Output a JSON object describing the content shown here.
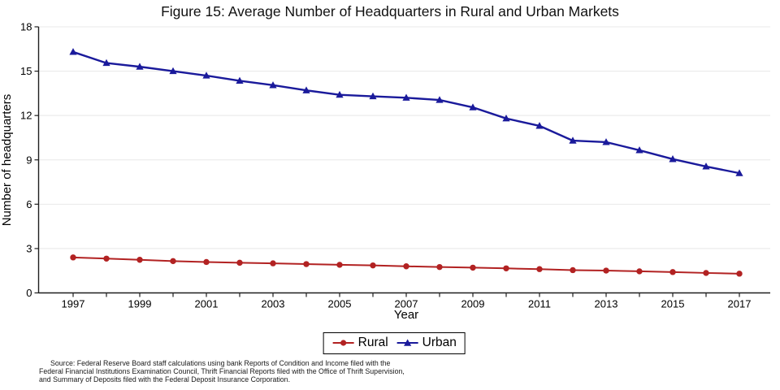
{
  "title": "Figure 15: Average Number of Headquarters in Rural and Urban Markets",
  "chart_data": {
    "type": "line",
    "x": [
      1997,
      1998,
      1999,
      2000,
      2001,
      2002,
      2003,
      2004,
      2005,
      2006,
      2007,
      2008,
      2009,
      2010,
      2011,
      2012,
      2013,
      2014,
      2015,
      2016,
      2017
    ],
    "series": [
      {
        "name": "Rural",
        "marker": "circle",
        "color": "#b22222",
        "values": [
          2.4,
          2.32,
          2.24,
          2.15,
          2.09,
          2.04,
          2.0,
          1.95,
          1.9,
          1.86,
          1.8,
          1.75,
          1.71,
          1.66,
          1.61,
          1.54,
          1.51,
          1.46,
          1.41,
          1.35,
          1.3
        ]
      },
      {
        "name": "Urban",
        "marker": "triangle",
        "color": "#1a1a9b",
        "values": [
          16.3,
          15.55,
          15.3,
          15.0,
          14.7,
          14.35,
          14.05,
          13.7,
          13.4,
          13.3,
          13.2,
          13.05,
          12.55,
          11.8,
          11.3,
          10.3,
          10.2,
          9.65,
          9.05,
          8.55,
          8.1
        ]
      }
    ],
    "xlabel": "Year",
    "ylabel": "Number of headquarters",
    "ylim": [
      0,
      18
    ],
    "yticks": [
      0,
      3,
      6,
      9,
      12,
      15,
      18
    ],
    "xtick_labels": [
      1997,
      1999,
      2001,
      2003,
      2005,
      2007,
      2009,
      2011,
      2013,
      2015,
      2017
    ],
    "grid": "horizontal",
    "legend_position": "bottom-center",
    "colors": {
      "gridline": "#e8e8e8",
      "axis": "#1f1f1f"
    }
  },
  "source_note": {
    "line1": "Source: Federal Reserve Board staff calculations using bank Reports of Condition and Income filed with the",
    "line2": "Federal Financial Institutions Examination Council, Thrift Financial Reports filed with the Office of Thrift Supervision,",
    "line3": "and Summary of Deposits filed with the Federal Deposit Insurance Corporation."
  }
}
